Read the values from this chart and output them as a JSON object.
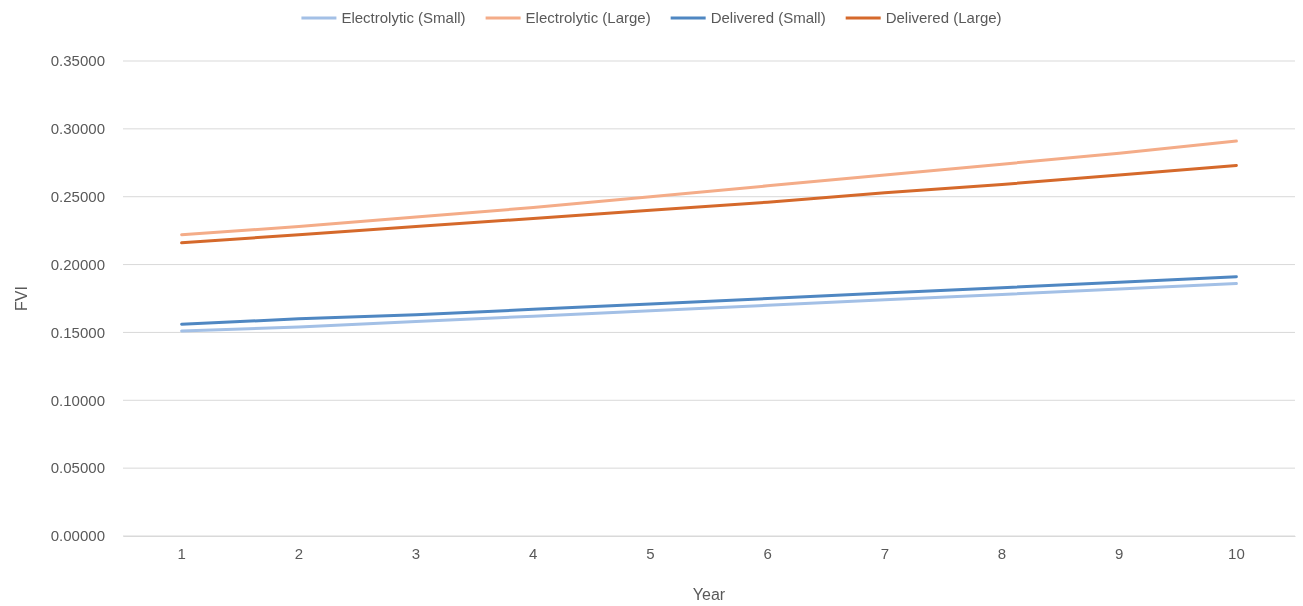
{
  "chart_data": {
    "type": "line",
    "xlabel": "Year",
    "ylabel": "FVI",
    "categories": [
      "1",
      "2",
      "3",
      "4",
      "5",
      "6",
      "7",
      "8",
      "9",
      "10"
    ],
    "ylim": [
      0,
      0.35
    ],
    "yticks": [
      {
        "value": 0,
        "label": "0.00000"
      },
      {
        "value": 0.05,
        "label": "0.05000"
      },
      {
        "value": 0.1,
        "label": "0.10000"
      },
      {
        "value": 0.15,
        "label": "0.15000"
      },
      {
        "value": 0.2,
        "label": "0.20000"
      },
      {
        "value": 0.25,
        "label": "0.25000"
      },
      {
        "value": 0.3,
        "label": "0.30000"
      },
      {
        "value": 0.35,
        "label": "0.35000"
      }
    ],
    "grid": "y",
    "legend": "top",
    "line_style": "solid",
    "marker": "none",
    "series": [
      {
        "name": "Electrolytic (Small)",
        "color": "#a3c0e6",
        "values": [
          0.151,
          0.154,
          0.158,
          0.162,
          0.166,
          0.17,
          0.174,
          0.178,
          0.182,
          0.186
        ]
      },
      {
        "name": "Electrolytic (Large)",
        "color": "#f4ac88",
        "values": [
          0.222,
          0.228,
          0.235,
          0.242,
          0.25,
          0.258,
          0.266,
          0.274,
          0.282,
          0.291
        ]
      },
      {
        "name": "Delivered (Small)",
        "color": "#4f87c2",
        "values": [
          0.156,
          0.16,
          0.163,
          0.167,
          0.171,
          0.175,
          0.179,
          0.183,
          0.187,
          0.191
        ]
      },
      {
        "name": "Delivered (Large)",
        "color": "#d5692b",
        "values": [
          0.216,
          0.222,
          0.228,
          0.234,
          0.24,
          0.246,
          0.253,
          0.259,
          0.266,
          0.273
        ]
      }
    ]
  }
}
